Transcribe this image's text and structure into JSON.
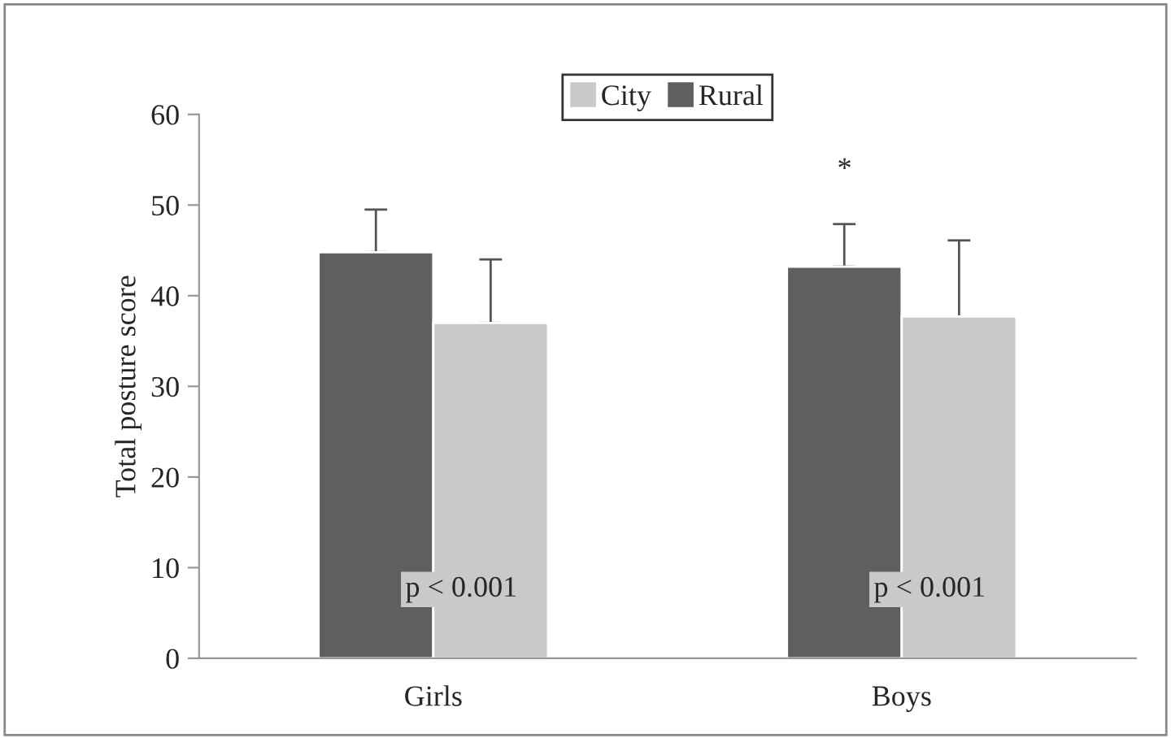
{
  "chart_data": {
    "type": "bar",
    "ylabel": "Total posture score",
    "categories": [
      "Girls",
      "Boys"
    ],
    "series": [
      {
        "name": "Rural",
        "color": "#5f5f61",
        "values": [
          44.8,
          43.2
        ],
        "errors": [
          [
            44.8,
            49.5
          ],
          [
            43.2,
            47.9
          ]
        ]
      },
      {
        "name": "City",
        "color": "#c8c9cb",
        "values": [
          37.0,
          37.7
        ],
        "errors": [
          [
            37.0,
            44.0
          ],
          [
            37.7,
            46.1
          ]
        ]
      }
    ],
    "ylim": [
      0,
      60
    ],
    "yticks": [
      0,
      10,
      20,
      30,
      40,
      50,
      60
    ],
    "grid": false,
    "legend": "top",
    "annotations": [
      {
        "text": "p < 0.001",
        "x": "Girls",
        "y": 7.6
      },
      {
        "text": "p < 0.001",
        "x": "Boys",
        "y": 7.6
      },
      "*"
    ]
  }
}
